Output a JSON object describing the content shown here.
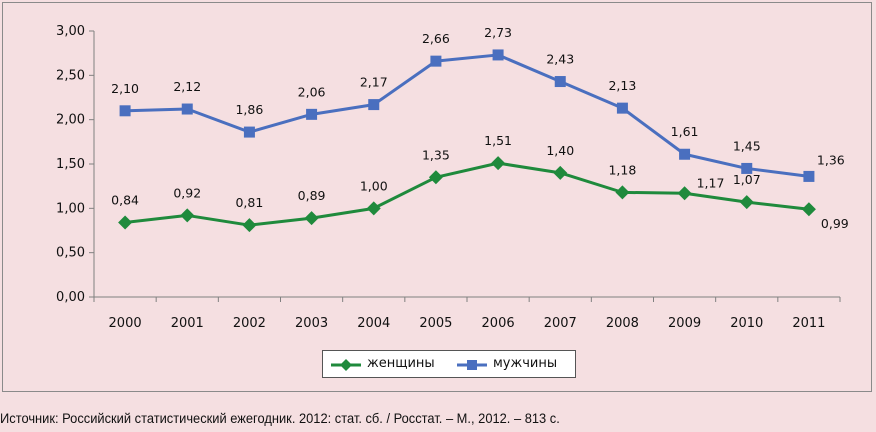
{
  "chart_data": {
    "type": "line",
    "categories": [
      "2000",
      "2001",
      "2002",
      "2003",
      "2004",
      "2005",
      "2006",
      "2007",
      "2008",
      "2009",
      "2010",
      "2011"
    ],
    "ylim": [
      0,
      3
    ],
    "yticks": [
      "0,00",
      "0,50",
      "1,00",
      "1,50",
      "2,00",
      "2,50",
      "3,00"
    ],
    "ytick_values": [
      0,
      0.5,
      1,
      1.5,
      2,
      2.5,
      3
    ],
    "grid": false,
    "legend_position": "bottom",
    "series": [
      {
        "name": "женщины",
        "color": "#1f8a3c",
        "marker": "diamond",
        "values": [
          0.84,
          0.92,
          0.81,
          0.89,
          1.0,
          1.35,
          1.51,
          1.4,
          1.18,
          1.17,
          1.07,
          0.99
        ],
        "labels": [
          "0,84",
          "0,92",
          "0,81",
          "0,89",
          "1,00",
          "1,35",
          "1,51",
          "1,40",
          "1,18",
          "1,17",
          "1,07",
          "0,99"
        ]
      },
      {
        "name": "мужчины",
        "color": "#4a6fbf",
        "marker": "square",
        "values": [
          2.1,
          2.12,
          1.86,
          2.06,
          2.17,
          2.66,
          2.73,
          2.43,
          2.13,
          1.61,
          1.45,
          1.36
        ],
        "labels": [
          "2,10",
          "2,12",
          "1,86",
          "2,06",
          "2,17",
          "2,66",
          "2,73",
          "2,43",
          "2,13",
          "1,61",
          "1,45",
          "1,36"
        ]
      }
    ]
  },
  "source_text": "Источник: Российский статистический ежегодник. 2012: стат. сб. / Росстат. – М., 2012.  – 813 с."
}
